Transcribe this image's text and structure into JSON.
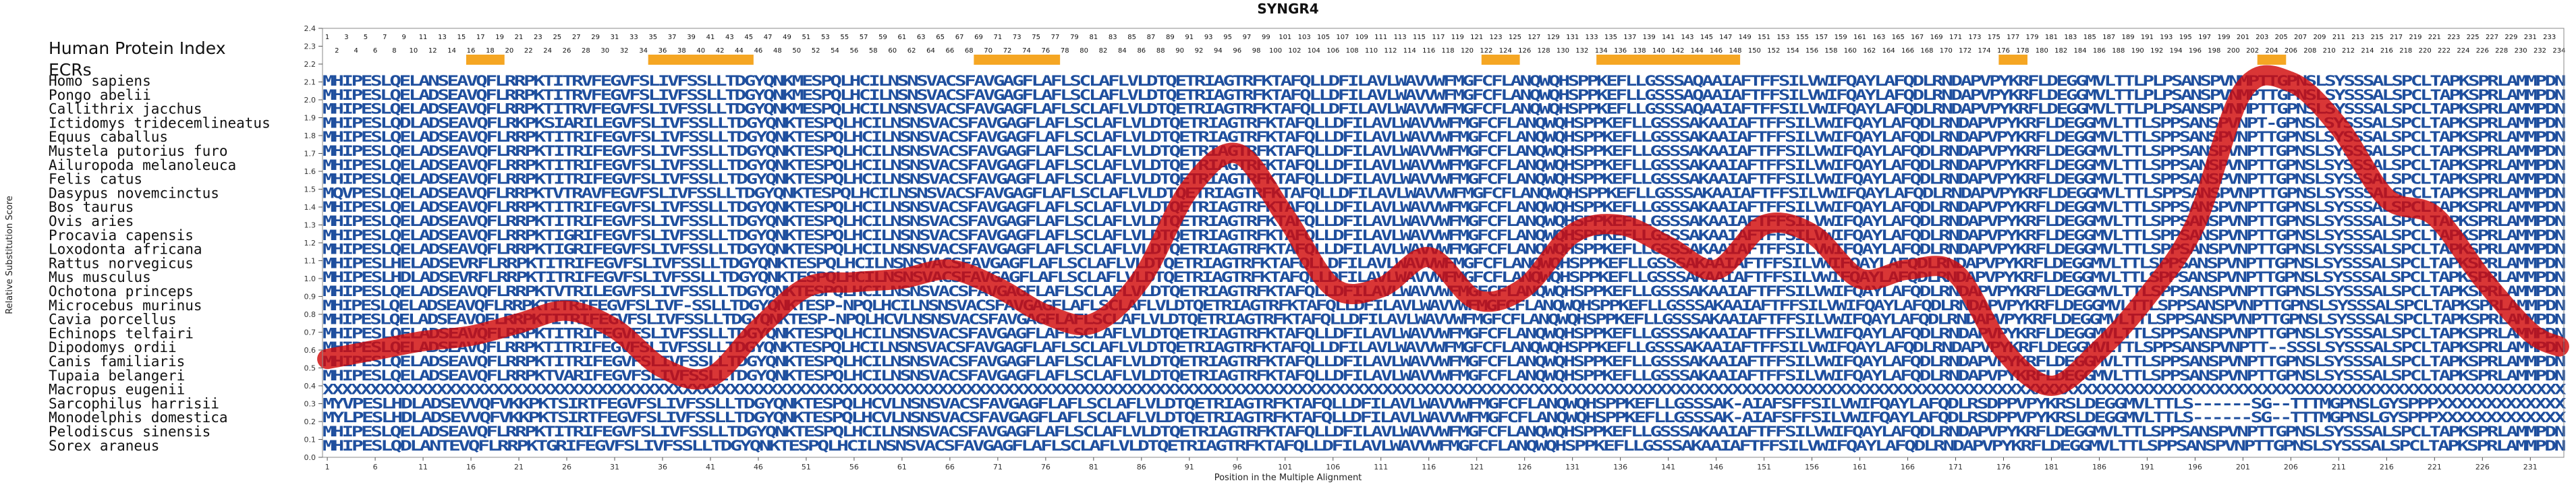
{
  "chart_data": {
    "type": "line",
    "title": "SYNGR4",
    "header_rows": [
      "Human Protein Index",
      "ECRs"
    ],
    "xlabel": "Position in the Multiple Alignment",
    "ylabel": "Relative Substitution Score",
    "xlim": [
      1,
      234
    ],
    "ylim": [
      0,
      2.4
    ],
    "yticks": [
      0.0,
      0.1,
      0.2,
      0.3,
      0.4,
      0.5,
      0.6,
      0.7,
      0.8,
      0.9,
      1.0,
      1.1,
      1.2,
      1.3,
      1.4,
      1.5,
      1.6,
      1.7,
      1.8,
      1.9,
      2.0,
      2.1,
      2.2,
      2.3,
      2.4
    ],
    "xticks": [
      1,
      6,
      11,
      16,
      21,
      26,
      31,
      36,
      41,
      46,
      51,
      56,
      61,
      66,
      71,
      76,
      81,
      86,
      91,
      96,
      101,
      106,
      111,
      116,
      121,
      126,
      131,
      136,
      141,
      146,
      151,
      156,
      161,
      166,
      171,
      176,
      181,
      186,
      191,
      196,
      201,
      206,
      211,
      216,
      221,
      226,
      231
    ],
    "ecr_ranges": [
      [
        16,
        19
      ],
      [
        35,
        45
      ],
      [
        69,
        77
      ],
      [
        122,
        125
      ],
      [
        134,
        148
      ],
      [
        176,
        178
      ],
      [
        203,
        205
      ]
    ],
    "species": [
      "Homo sapiens",
      "Pongo abelii",
      "Callithrix jacchus",
      "Ictidomys tridecemlineatus",
      "Equus caballus",
      "Mustela putorius furo",
      "Ailuropoda melanoleuca",
      "Felis catus",
      "Dasypus novemcinctus",
      "Bos taurus",
      "Ovis aries",
      "Procavia capensis",
      "Loxodonta africana",
      "Rattus norvegicus",
      "Mus musculus",
      "Ochotona princeps",
      "Microcebus murinus",
      "Cavia porcellus",
      "Echinops telfairi",
      "Dipodomys ordii",
      "Canis familiaris",
      "Tupaia belangeri",
      "Macropus eugenii",
      "Sarcophilus harrisii",
      "Monodelphis domestica",
      "Pelodiscus sinensis",
      "Sorex araneus"
    ],
    "sequences": [
      "MHIPESLQELANSEAVQFLRRPKTITRVFEGVFSLIVFSSLLTDGYQNKMESPQLHCILNSNSVACSFAVGAGFLAFLSCLAFLVLDTQETRIAGTRFKTAFQLLDFILAVLWAVVWFMGFCFLANQWQHSPPKEFLLGSSSAQAAIAFTFFSILVWIFQAYLAFQDLRNDAPVPYKRFLDEGGMVLTTLPLPSANSPVNMPTTGPNSLSYSSSALSPCLTAPKSPRLAMMPDN",
      "MHIPESLQELADSEAVQFLRRPKTITRVFEGVFSLIVFSSLLTDGYQNKMESPQLHCILNSNSVACSFAVGAGFLAFLSCLAFLVLDTQETRIAGTRFKTAFQLLDFILAVLWAVVWFMGFCFLANQWQHSPPKEFLLGSSSAQAAIAFTFFSILVWIFQAYLAFQDLRNDAPVPYKRFLDEGGMVLTTLPLPSANSPVNMPTTGPNSLSYSSSALSPCLTAPKSPRLAMMPDN",
      "MHIPESLQELADSEAVQFLRRPKTITRVFEGVFSLIVFSSLLTDGYQNKMESPQLHCILNSNSVACSFAVGAGFLAFLSCLAFLVLDTQETRIAGTRFKTAFQLLDFILAVLWAVVWFMGFCFLANQWQHSPPKEFLLGSSSAQAAIAFTFFSILVWIFQAYLAFQDLRNDAPVPYKRFLDEGGMVLTTLPLPSANSPVNMPTTGPNSLSYSSSALSPCLTAPKSPRLAMMPDN",
      "MHIPESLQDLADSEAVQFLRKPKSIARILEGVFSLIVFSSLLTDGYQNKTESPQLHCILNSNSVACSFAVGAGFLAFLSCLAFLVLDTQETRIAGTRFKTAFQLLDFILAVLWAVVWFMGFCFLANQWQHSPPKEFLLGSSSAKAAIAFTFFSILVWIFQAYLAFQDLRNDAPVPYKRFLDEGGMVLTTLSPPSANSPVNPT-GPNSLSYSSSALSPCLTAPKSPRLAMMPDN",
      "MHIPESLQELADSEAVQFLRRPKTITRIFEGVFSLIVFSSLLTDGYQNKTESPQLHCILNSNSVACSFAVGAGFLAFLSCLAFLVLDTQETRIAGTRFKTAFQLLDFILAVLWAVVWFMGFCFLANQWQHSPPKEFLLGSSSAKAAIAFTFFSILVWIFQAYLAFQDLRNDAPVPYKRFLDEGGMVLTTLSPPSANSPVNPTTGPNSLSYSSSALSPCLTAPKSPRLAMMPDN",
      "MHIPESLQELADSEAVQFLRRPKTITRIFEGVFSLIVFSSLLTDGYQNKTESPQLHCILNSNSVACSFAVGAGFLAFLSCLAFLVLDTQETRIAGTRFKTAFQLLDFILAVLWAVVWFMGFCFLANQWQHSPPKEFLLGSSSAKAAIAFTFFSILVWIFQAYLAFQDLRNDAPVPYKRFLDEGGMVLTTLSPPSANSPVNPTTGPNSLSYSSSALSPCLTAPKSPRLAMMPDN",
      "MHIPESLQELADSEAVQFLRRPKTITRIFEGVFSLIVFSSLLTDGYQNKTESPQLHCILNSNSVACSFAVGAGFLAFLSCLAFLVLDTQETRIAGTRFKTAFQLLDFILAVLWAVVWFMGFCFLANQWQHSPPKEFLLGSSSAKAAIAFTFFSILVWIFQAYLAFQDLRNDAPVPYKRFLDEGGMVLTTLSPPSANSPVNPTTGPNSLSYSSSALSPCLTAPKSPRLAMMPDN",
      "MHIPESLQELADSEAVQFLRRPKTITRIFEGVFSLIVFSSLLTDGYQNKTESPQLHCILNSNSVACSFAVGAGFLAFLSCLAFLVLDTQETRIAGTRFKTAFQLLDFILAVLWAVVWFMGFCFLANQWQHSPPKEFLLGSSSAKAAIAFTFFSILVWIFQAYLAFQDLRNDAPVPYKRFLDEGGMVLTTLSPPSANSPVNPTTGPNSLSYSSSALSPCLTAPKSPRLAMMPDN",
      "MQVPESLQELADSEAVQFLRRPKTVTRAVFEGVFSLIVFSSLLTDGYQNKTESPQLHCILNSNSVACSFAVGAGFLAFLSCLAFLVLDTQETRIAGTRFKTAFQLLDFILAVLWAVVWFMGFCFLANQWQHSPPKEFLLGSSSAKAAIAFTFFSILVWIFQAYLAFQDLRNDAPVPYKRFLDEGGMVLTTLSPPSANSPVNPTTGPNSLSYSSSALSPCLTAPKSPRLAMMPDN",
      "MHIPESLQELADSEAVQFLRRPKTITRIFEGVFSLIVFSSLLTDGYQNKTESPQLHCILNSNSVACSFAVGAGFLAFLSCLAFLVLDTQETRIAGTRFKTAFQLLDFILAVLWAVVWFMGFCFLANQWQHSPPKEFLLGSSSAKAAIAFTFFSILVWIFQAYLAFQDLRNDAPVPYKRFLDEGGMVLTTLSPPSANSPVNPTTGPNSLSYSSSALSPCLTAPKSPRLAMMPDN",
      "MHIPESLQELADSEAVQFLRRPKTITRIFEGVFSLIVFSSLLTDGYQNKTESPQLHCILNSNSVACSFAVGAGFLAFLSCLAFLVLDTQETRIAGTRFKTAFQLLDFILAVLWAVVWFMGFCFLANQWQHSPPKEFLLGSSSAKAAIAFTFFSILVWIFQAYLAFQDLRNDAPVPYKRFLDEGGMVLTTLSPPSANSPVNPTTGPNSLSYSSSALSPCLTAPKSPRLAMMPDN",
      "MHIPESLQELADSEAVQFLRRPKTIGRIFEGVFSLIVFSSLLTDGYQNKTESPQLHCILNSNSVACSFAVGAGFLAFLSCLAFLVLDTQETRIAGTRFKTAFQLLDFILAVLWAVVWFMGFCFLANQWQHSPPKEFLLGSSSAKAAIAFTFFSILVWIFQAYLAFQDLRNDAPVPYKRFLDEGGMVLTTLSPPSANSPVNPTTGPNSLSYSSSALSPCLTAPKSPRLAMMPDN",
      "MHIPESLQELADSEAVQFLRRPKTIGRIFEGVFSLIVFSSLLTDGYQNKTESPQLHCILNSNSVACSFAVGAGFLAFLSCLAFLVLDTQETRIAGTRFKTAFQLLDFILAVLWAVVWFMGFCFLANQWQHSPPKEFLLGSSSAKAAIAFTFFSILVWIFQAYLAFQDLRNDAPVPYKRFLDEGGMVLTTLSPPSANSPVNPTTGPNSLSYSSSALSPCLTAPKSPRLAMMPDN",
      "MHIPESLHELADSEVRFLRRPKTITRIFEGVFSLIVFSSLLTDGYQNKTESPQLHCILNSNSVACSFAVGAGFLAFLSCLAFLVLDTQETRIAGTRFKTAFQLLDFILAVLWAVVWFMGFCFLANQWQHSPPKEFLLGSSSAKAAIAFTFFSILVWIFQAYLAFQDLRNDAPVPYKRFLDEGGMVLTTLSPPSANSPVNPTTGPNSLSYSSSALSPCLTAPKSPRLAMMPDN",
      "MHIPESLHDLADSEVRFLRRPKTITRIFEGVFSLIVFSSLLTDGYQNKTESPQLHCILNSNSVACSFAVGAGFLAFLSCLAFLVLDTQETRIAGTRFKTAFQLLDFILAVLWAVVWFMGFCFLANQWQHSPPKEFLLGSSSAKAAIAFTFFSILVWIFQAYLAFQDLRNDAPVPYKRFLDEGGMVLTTLSPPSANSPVNPTTGPNSLSYSSSALSPCLTAPKSPRLAMMPDN",
      "MHIPESLQELADSEAVQFLRRPKTVTRILEGVFSLIVFSSLLTDGYQNKTESPQLHCILNSNSVACSFAVGAGFLAFLSCLAFLVLDTQETRIAGTRFKTAFQLLDFILAVLWAVVWFMGFCFLANQWQHSPPKEFLLGSSSAKAAIAFTFFSILVWIFQAYLAFQDLRNDAPVPYKRFLDEGGMVLTTLSPPSANSPVNPTTGPNSLSYSSSALSPCLTAPKSPRLAMMPDN",
      "MHIPESLQELADSEAVQFLRRPKTITRIFEGVFSLIVF-SSLLTDGYQNKTESP-NPQLHCILNSNSVACSFAVGAGFLAFLSCLAFLVLDTQETRIAGTRFKTAFQLLDFILAVLWAVVWFMGFCFLANQWQHSPPKEFLLGSSSAKAAIAFTFFSILVWIFQAYLAFQDLRNDAPVPYKRFLDEGGMVLTTLSPPSANSPVNPTTGPNSLSYSSSALSPCLTAPKSPRLAMMPDN",
      "MHIPESLQELADSEAVQFLRRPKTITRIFEGVFSLIVFSSLLTDGYQNKTESP-NPQLHCVLNSNSVACSFAVGAGFLAFLSCLAFLVLDTQETRIAGTRFKTAFQLLDFILAVLWAVVWFMGFCFLANQWQHSPPKEFLLGSSSAKAAIAFTFFSILVWIFQAYLAFQDLRNDAPVPYKRFLDEGGMVLTTLSPPSANSPVNPTTGPNSLSYSSSALSPCLTAPKSPRLAMMPDN",
      "MHIPESLQELADSEAVQFLRRPKTITRIFEGVFSLIVFSSLLTDGYQNKTESPQLHCILNSNSVACSFAVGAGFLAFLSCLAFLVLDTQETRIAGTRFKTAFQLLDFILAVLWAVVWFMGFCFLANQWQHSPPKEFLLGSSSAKAAIAFTFFSILVWIFQAYLAFQDLRNDAPVPYKRFLDEGGMVLTTLSPPSANSPVNPTTGPNSLSYSSSALSPCLTAPKSPRLAMMPDN",
      "MHIPESLQELADSEAVQFLRRPKTITRIFEGVFSLIVFSSLLTDGYQNKTESPQLHCILNSNSVACSFAVGAGFLAFLSCLAFLVLDTQETRIAGTRFKTAFQLLDFILAVLWAVVWFMGFCFLANQWQHSPPKEFLLGSSSAKAAIAFTFFSILVWIFQAYLAFQDLRNDAPVPYKRFLDEGGMVLTTLSPPSANSPVNPTT--SSSLSYSSSALSPCLTAPKSPRLAMMPDN",
      "MHIPESLQELADSEAVQFLRRPKTITRIFEGVFSLIVFSSLLTDGYQNKTESPQLHCILNSNSVACSFAVGAGFLAFLSCLAFLVLDTQETRIAGTRFKTAFQLLDFILAVLWAVVWFMGFCFLANQWQHSPPKEFLLGSSSAKAAIAFTFFSILVWIFQAYLAFQDLRNDAPVPYKRFLDEGGMVLTTLSPPSANSPVNPTTGPNSLSYSSSALSPCLTAPKSPRLAMMPDN",
      "MHIPESLQELADSEAVQFLRRPKTVARIFEGVFSLIVFSSLLTDGYQNKTESPQLHCILNSNSVACSFAVGAGFLAFLSCLAFLVLDTQETRIAGTRFKTAFQLLDFILAVLWAVVWFMGFCFLANQWQHSPPKEFLLGSSSAKAAIAFTFFSILVWIFQAYLAFQDLRNDAPVPYKRFLDEGGMVLTTLSPPSANSPVNPTTGPNSLSYSSSALSPCLTAPKSPRLAMMPDN",
      "XXXXXXXXXXXXXXXXXXXXXXXXXXXXXXXXXXXXXXXXXXXXXXXXXXXXXXXXXXXXXXXXXXXXXXXXXXXXXXXXXXXXXXXXXXXXXXXXXXXXXXXXXXXXXXXXXXXXXXXXXXXXXXXXXXXXXXXXXXXXXXXXXXXXXXXXXXXXXXXXXXXXXXXXXXXXXXXXXXXXXXXXXXXXXXXXXXXXXXXXXXXXXXXXXXXXXXXXXXXXXXXXXXXXXXXXXXXXX",
      "MYVPESLHDLADSEVVQFVKKPKTSIRTFEGVFSLIVFSSLLTDGYQNKTESPQLHCVLNSNSVACSFAVGAGFLAFLSCLAFLVLDTQETRIAGTRFKTAFQLLDFILAVLWAVVWFMGFCFLANQWQHSPPKEFLLGSSSAK-AIAFSFFSILVWIFQAYLAFQDLRSDPPVPYKRSLDEGGMVLTTLS------SG--TTTMGPNSLGYSPPPXXXXXXXXXXXXX",
      "MYLPESLHDLADSEVVQFVKKPKTSIRTFEGVFSLIVFSSLLTDGYQNKTESPQLHCVLNSNSVACSFAVGAGFLAFLSCLAFLVLDTQETRIAGTRFKTAFQLLDFILAVLWAVVWFMGFCFLANQWQHSPPKEFLLGSSSAK-AIAFSFFSILVWIFQAYLAFQDLRSDPPVPYKRSLDEGGMVLTTLS------SG--TTTMGPNSLGYSPPPXXXXXXXXXXXXX",
      "MHIPESLQELADSEAVQFLRRPKTITRIFEGVFSLIVFSSLLTDGYQNKTESPQLHCILNSNSVACSFAVGAGFLAFLSCLAFLVLDTQETRIAGTRFKTAFQLLDFILAVLWAVVWFMGFCFLANQWQHSPPKEFLLGSSSAKAAIAFTFFSILVWIFQAYLAFQDLRNDAPVPYKRFLDEGGMVLTTLSPPSANSPVNPTTGPNSLSYSSSALSPCLTAPKSPRLAMMPDN",
      "MHIPESLQDLANTEVQFLRRPKTGRIFEGVFSLIVFSSLLTDGYQNKTESPQLHCILNSNSVACSFAVGAGFLAFLSCLAFLVLDTQETRIAGTRFKTAFQLLDFILAVLWAVVWFMGFCFLANQWQHSPPKEFLLGSSSAKAAIAFTFFSILVWIFQAYLAFQDLRNDAPVPYKRFLDEGGMVLTTLSPPSANSPVNPTTGPNSLSYSSSALSPCLTAPKSPRLAMMPDN"
    ],
    "series": [
      {
        "x": [
          1,
          6,
          11,
          16,
          21,
          26,
          31,
          36,
          41,
          46,
          51,
          56,
          61,
          66,
          71,
          76,
          81,
          86,
          91,
          96,
          101,
          106,
          111,
          116,
          121,
          126,
          131,
          136,
          141,
          146,
          151,
          156,
          161,
          166,
          171,
          176,
          181,
          186,
          191,
          196,
          201,
          206,
          211,
          216,
          221,
          226,
          231,
          234
        ],
        "y": [
          0.55,
          0.6,
          0.65,
          0.68,
          0.75,
          0.82,
          0.72,
          0.5,
          0.45,
          0.72,
          0.95,
          0.98,
          1.0,
          1.05,
          0.95,
          0.8,
          0.75,
          1.0,
          1.5,
          1.7,
          1.35,
          0.95,
          0.95,
          1.12,
          0.88,
          0.95,
          1.25,
          1.3,
          1.18,
          1.05,
          1.3,
          1.25,
          1.0,
          1.05,
          1.03,
          0.6,
          0.4,
          0.6,
          0.9,
          1.3,
          2.05,
          2.1,
          1.85,
          1.45,
          1.35,
          1.0,
          0.7,
          0.62
        ]
      }
    ]
  }
}
